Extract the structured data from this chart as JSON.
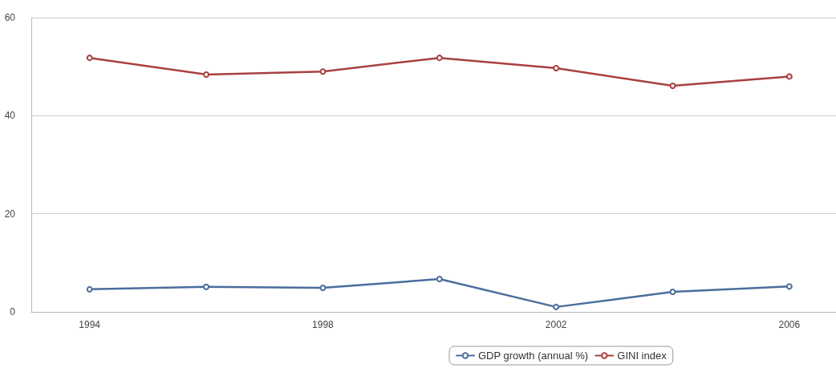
{
  "chart_data": {
    "type": "line",
    "x": [
      1994,
      1996,
      1998,
      2000,
      2002,
      2004,
      2006
    ],
    "series": [
      {
        "name": "GDP growth (annual %)",
        "color": "#4a6e9c",
        "values": [
          4.6,
          5.1,
          4.9,
          6.7,
          1.0,
          4.1,
          5.2
        ]
      },
      {
        "name": "GINI index",
        "color": "#a8403f",
        "values": [
          51.8,
          48.4,
          49.0,
          51.8,
          49.7,
          46.1,
          48.0
        ]
      }
    ],
    "xlim": [
      1993,
      2006.8
    ],
    "xticks": [
      1994,
      1998,
      2002,
      2006
    ],
    "ylim": [
      0,
      60
    ],
    "yticks": [
      0,
      20,
      40,
      60
    ],
    "grid": "y",
    "legend": "bottom",
    "marker": "circle",
    "line_style": "solid"
  }
}
